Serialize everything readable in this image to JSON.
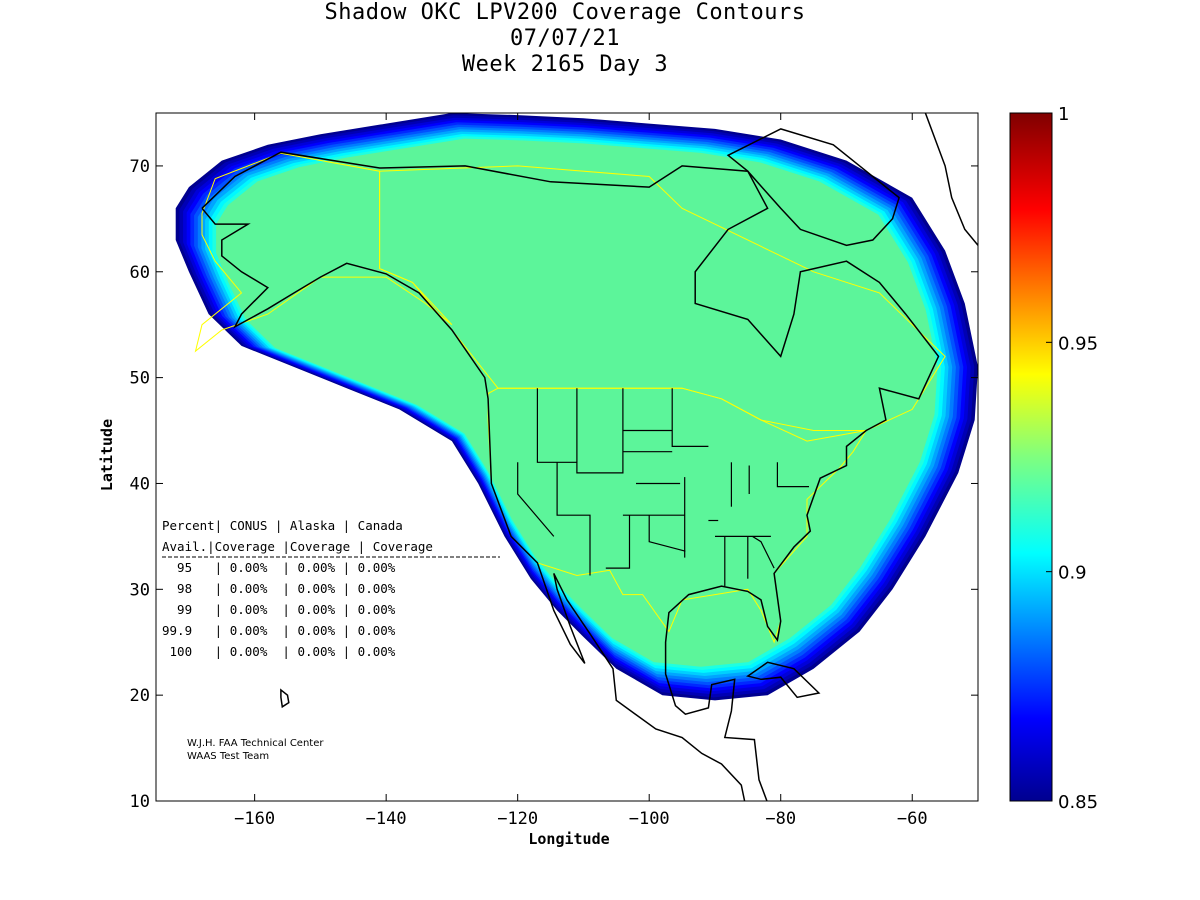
{
  "title": {
    "line1": "Shadow OKC LPV200 Coverage Contours",
    "line2": "07/07/21",
    "line3": "Week 2165 Day 3"
  },
  "axes": {
    "xlabel": "Longitude",
    "ylabel": "Latitude",
    "xlim": [
      -175,
      -50
    ],
    "ylim": [
      10,
      75
    ],
    "x_ticks": [
      -160,
      -140,
      -120,
      -100,
      -80,
      -60
    ],
    "x_tick_labels": [
      "−160",
      "−140",
      "−120",
      "−100",
      "−80",
      "−60"
    ],
    "y_ticks": [
      10,
      20,
      30,
      40,
      50,
      60,
      70
    ],
    "y_tick_labels": [
      "10",
      "20",
      "30",
      "40",
      "50",
      "60",
      "70"
    ]
  },
  "colorbar": {
    "min": 0.85,
    "max": 1,
    "tick_values": [
      0.85,
      0.9,
      0.95,
      1
    ],
    "tick_labels": [
      "0.85",
      "0.9",
      "0.95",
      "1"
    ],
    "colormap": "jet"
  },
  "stats_table": {
    "header1": "Percent| CONUS   | Alaska  | Canada",
    "header2": " Avail.|Coverage |Coverage | Coverage",
    "rows": [
      "  95   | 0.00%  | 0.00% | 0.00%",
      "  98   | 0.00%  | 0.00% | 0.00%",
      "  99   | 0.00%  | 0.00% | 0.00%",
      "99.9   | 0.00%  | 0.00% | 0.00%",
      " 100   | 0.00%  | 0.00% | 0.00%"
    ]
  },
  "credits": {
    "line1": "W.J.H. FAA Technical Center",
    "line2": "WAAS Test Team"
  },
  "colors": {
    "coverage_fill": "#5cf59a",
    "boundary_yellow": "#ffff00",
    "coast_black": "#000000"
  },
  "chart_data": {
    "type": "heatmap",
    "title": "Shadow OKC LPV200 Coverage Contours",
    "subtitle": "07/07/21 — Week 2165 Day 3",
    "xlabel": "Longitude",
    "ylabel": "Latitude",
    "xlim": [
      -175,
      -50
    ],
    "ylim": [
      10,
      75
    ],
    "value_range": [
      0.85,
      1
    ],
    "coverage_region_lonlat": [
      [
        -172,
        66
      ],
      [
        -170,
        68
      ],
      [
        -165,
        70.5
      ],
      [
        -158,
        72
      ],
      [
        -150,
        73
      ],
      [
        -140,
        74
      ],
      [
        -130,
        75
      ],
      [
        -120,
        74.8
      ],
      [
        -110,
        74.5
      ],
      [
        -100,
        74
      ],
      [
        -90,
        73.5
      ],
      [
        -80,
        72.5
      ],
      [
        -70,
        70.5
      ],
      [
        -60,
        67
      ],
      [
        -55,
        62
      ],
      [
        -52,
        57
      ],
      [
        -50,
        51
      ],
      [
        -50.5,
        46
      ],
      [
        -53,
        41
      ],
      [
        -58,
        35
      ],
      [
        -63,
        30
      ],
      [
        -68,
        26
      ],
      [
        -75,
        22.5
      ],
      [
        -82,
        20
      ],
      [
        -90,
        19.5
      ],
      [
        -98,
        20
      ],
      [
        -105,
        22.5
      ],
      [
        -110,
        25.5
      ],
      [
        -114,
        28
      ],
      [
        -118,
        31
      ],
      [
        -122,
        35
      ],
      [
        -126,
        40
      ],
      [
        -130,
        44
      ],
      [
        -138,
        47
      ],
      [
        -146,
        49
      ],
      [
        -154,
        51
      ],
      [
        -162,
        53
      ],
      [
        -167,
        56
      ],
      [
        -170,
        60
      ],
      [
        -172,
        63
      ]
    ],
    "interior_level": 0.915,
    "stats": [
      {
        "percent": "95",
        "conus": "0.00%",
        "alaska": "0.00%",
        "canada": "0.00%"
      },
      {
        "percent": "98",
        "conus": "0.00%",
        "alaska": "0.00%",
        "canada": "0.00%"
      },
      {
        "percent": "99",
        "conus": "0.00%",
        "alaska": "0.00%",
        "canada": "0.00%"
      },
      {
        "percent": "99.9",
        "conus": "0.00%",
        "alaska": "0.00%",
        "canada": "0.00%"
      },
      {
        "percent": "100",
        "conus": "0.00%",
        "alaska": "0.00%",
        "canada": "0.00%"
      }
    ]
  }
}
